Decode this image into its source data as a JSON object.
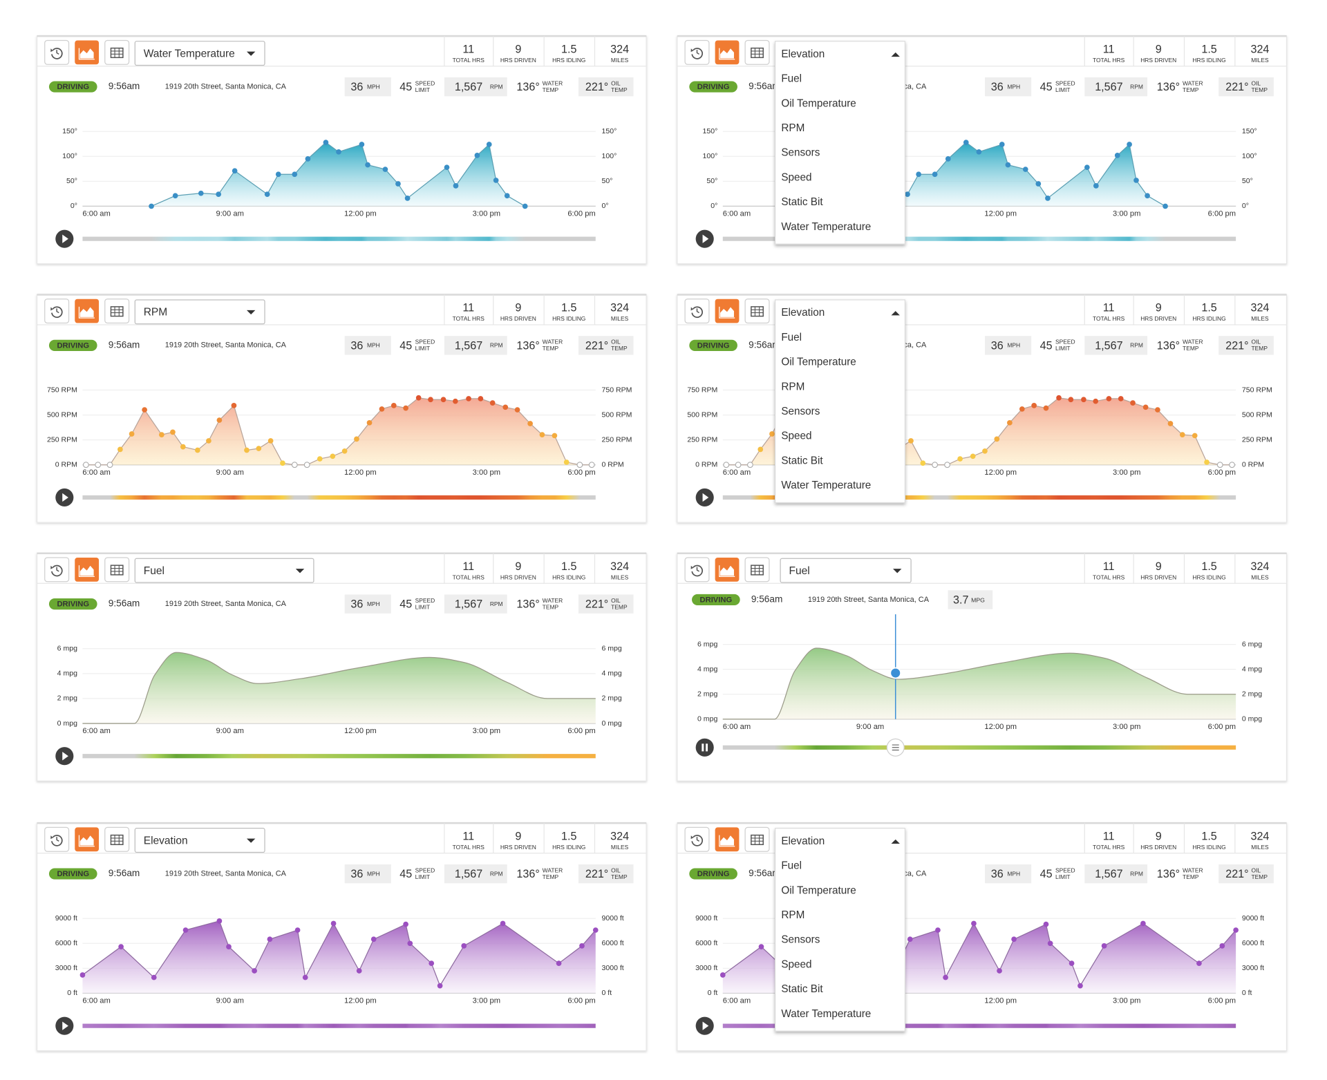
{
  "metrics": [
    "Elevation",
    "Fuel",
    "Oil Temperature",
    "RPM",
    "Sensors",
    "Speed",
    "Static Bit",
    "Water Temperature"
  ],
  "summary": [
    {
      "value": 11,
      "label": "TOTAL HRS"
    },
    {
      "value": 9,
      "label": "HRS DRIVEN"
    },
    {
      "value": 1.5,
      "label": "HRS IDLING"
    },
    {
      "value": 324,
      "label": "MILES"
    }
  ],
  "status": {
    "state": "DRIVING",
    "time": "9:56am",
    "address": "1919 20th Street, Santa Monica, CA"
  },
  "readings": [
    {
      "value": 36,
      "unit": [
        "MPH"
      ]
    },
    {
      "value": 45,
      "unit": [
        "SPEED",
        "LIMIT"
      ]
    },
    {
      "value": "1,567",
      "unit": [
        "RPM"
      ]
    },
    {
      "value": "136°",
      "unit": [
        "WATER",
        "TEMP"
      ]
    },
    {
      "value": "221°",
      "unit": [
        "OIL",
        "TEMP"
      ]
    }
  ],
  "panels": [
    {
      "selected": "Water Temperature"
    },
    {
      "menu_open": true,
      "menu_disabled": "Water Temperature"
    },
    {
      "selected": "RPM"
    },
    {
      "menu_open": true,
      "menu_disabled": "RPM"
    },
    {
      "selected": "Fuel"
    },
    {
      "selected": "Fuel",
      "playing": true,
      "reading": {
        "x": 10.04,
        "value": 3.7,
        "unit": "MPG"
      }
    },
    {
      "selected": "Elevation"
    },
    {
      "menu_open": true,
      "menu_disabled": "Elevation"
    }
  ],
  "chart_data": [
    {
      "type": "area",
      "x": [
        7.61,
        8.17,
        8.77,
        9.18,
        9.56,
        10.32,
        10.58,
        10.96,
        11.27,
        11.69,
        11.99,
        12.53,
        12.67,
        13.08,
        13.38,
        13.6,
        14.52,
        14.73,
        15.23,
        15.51,
        15.67,
        15.93,
        16.35
      ],
      "values": [
        0,
        21,
        26,
        24,
        71,
        24,
        64,
        64,
        95,
        128,
        109,
        124,
        83,
        74,
        45,
        16,
        78,
        41,
        102,
        124,
        52,
        21,
        0
      ],
      "xlim": [
        6,
        18
      ],
      "xticks": [
        {
          "value": 6,
          "label": "6:00 am"
        },
        {
          "value": 9,
          "label": "9:00 am"
        },
        {
          "value": 12,
          "label": "12:00 pm"
        },
        {
          "value": 15,
          "label": "3:00 pm"
        },
        {
          "value": 18,
          "label": "6:00 pm"
        }
      ],
      "ylim": [
        0,
        150
      ],
      "yticks": [
        {
          "value": 0,
          "label": "0°"
        },
        {
          "value": 50,
          "label": "50°"
        },
        {
          "value": 100,
          "label": "100°"
        },
        {
          "value": 150,
          "label": "150°"
        }
      ],
      "grid": true,
      "markers": "solid",
      "color": "#3a8fc6",
      "stroke": "#5b9fb3",
      "fill": [
        "#1fa3bf",
        "#eaf8fb"
      ],
      "scale_colors": [
        "#c8e8ee",
        "#3aafc6"
      ]
    },
    {
      "type": "area",
      "x": [
        6.08,
        6.36,
        6.64,
        6.88,
        7.15,
        7.45,
        7.85,
        8.11,
        8.35,
        8.69,
        8.95,
        9.2,
        9.54,
        9.84,
        10.12,
        10.4,
        10.68,
        10.96,
        11.25,
        11.55,
        11.85,
        12.13,
        12.41,
        12.71,
        13,
        13.28,
        13.56,
        13.86,
        14.14,
        14.44,
        14.72,
        15.03,
        15.31,
        15.59,
        15.89,
        16.17,
        16.47,
        16.75,
        17.04,
        17.32,
        17.63,
        17.91
      ],
      "values": [
        0,
        0,
        0,
        155,
        310,
        552,
        302,
        328,
        181,
        147,
        241,
        448,
        595,
        147,
        164,
        241,
        17,
        0,
        0,
        60,
        86,
        138,
        259,
        422,
        560,
        595,
        569,
        672,
        655,
        655,
        638,
        664,
        664,
        621,
        578,
        552,
        414,
        302,
        293,
        26,
        0,
        0
      ],
      "xlim": [
        6,
        18
      ],
      "xticks": [
        {
          "value": 6,
          "label": "6:00 am"
        },
        {
          "value": 9,
          "label": "9:00 am"
        },
        {
          "value": 12,
          "label": "12:00 pm"
        },
        {
          "value": 15,
          "label": "3:00 pm"
        },
        {
          "value": 18,
          "label": "6:00 pm"
        }
      ],
      "ylim": [
        0,
        750
      ],
      "yticks": [
        {
          "value": 0,
          "label": "0 RPM"
        },
        {
          "value": 250,
          "label": "250 RPM"
        },
        {
          "value": 500,
          "label": "500 RPM"
        },
        {
          "value": 750,
          "label": "750 RPM"
        }
      ],
      "grid": true,
      "markers": "scale",
      "color": "#e0653a",
      "stroke": "#b8a49a",
      "fill": [
        "#f3a48f",
        "#fdebc0"
      ],
      "scale_colors": [
        "#f7d24a",
        "#f3a13a",
        "#d9402c"
      ]
    },
    {
      "type": "area",
      "x": [
        6,
        7.21,
        7.69,
        8.19,
        8.89,
        9.5,
        10.1,
        11.11,
        12.51,
        14.12,
        14.92,
        15.93,
        16.87,
        18
      ],
      "values": [
        0,
        0,
        3.9,
        5.7,
        5.1,
        3.9,
        3.2,
        3.6,
        4.5,
        5.3,
        4.9,
        3.3,
        2,
        2
      ],
      "xlim": [
        6,
        18
      ],
      "xticks": [
        {
          "value": 6,
          "label": "6:00 am"
        },
        {
          "value": 9,
          "label": "9:00 am"
        },
        {
          "value": 12,
          "label": "12:00 pm"
        },
        {
          "value": 15,
          "label": "3:00 pm"
        },
        {
          "value": 18,
          "label": "6:00 pm"
        }
      ],
      "ylim": [
        0,
        6
      ],
      "yticks": [
        {
          "value": 0,
          "label": "0 mpg"
        },
        {
          "value": 2,
          "label": "2 mpg"
        },
        {
          "value": 4,
          "label": "4 mpg"
        },
        {
          "value": 6,
          "label": "6 mpg"
        }
      ],
      "grid": true,
      "smooth": true,
      "markers": false,
      "color": "#3c8fd6",
      "stroke": "#9a9a88",
      "fill": [
        "#8fc77f",
        "#f7f3e4"
      ],
      "scale_colors": [
        "#f5b041",
        "#f5b041",
        "#a8d35c",
        "#5a9e2f"
      ]
    },
    {
      "type": "area",
      "x": [
        6,
        6.9,
        7.67,
        8.41,
        9.2,
        9.42,
        10.02,
        10.38,
        11.03,
        11.21,
        11.87,
        12.47,
        12.81,
        13.56,
        13.66,
        14.16,
        14.36,
        14.92,
        15.83,
        17.14,
        17.68,
        18
      ],
      "values": [
        2200,
        5600,
        1900,
        7600,
        8700,
        5600,
        2700,
        6500,
        7600,
        1900,
        8400,
        2700,
        6500,
        8300,
        6000,
        3600,
        900,
        5700,
        8400,
        3600,
        5700,
        7600
      ],
      "xlim": [
        6,
        18
      ],
      "xticks": [
        {
          "value": 6,
          "label": "6:00 am"
        },
        {
          "value": 9,
          "label": "9:00 am"
        },
        {
          "value": 12,
          "label": "12:00 pm"
        },
        {
          "value": 15,
          "label": "3:00 pm"
        },
        {
          "value": 18,
          "label": "6:00 pm"
        }
      ],
      "ylim": [
        0,
        9000
      ],
      "yticks": [
        {
          "value": 0,
          "label": "0 ft"
        },
        {
          "value": 3000,
          "label": "3000 ft"
        },
        {
          "value": 6000,
          "label": "6000 ft"
        },
        {
          "value": 9000,
          "label": "9000 ft"
        }
      ],
      "grid": true,
      "markers": "solid",
      "color": "#9b4fc0",
      "stroke": "#8e6aa0",
      "fill": [
        "#9d58bd",
        "#f5edf9"
      ],
      "scale_colors": [
        "#b98ad0",
        "#9b59b6"
      ]
    }
  ]
}
